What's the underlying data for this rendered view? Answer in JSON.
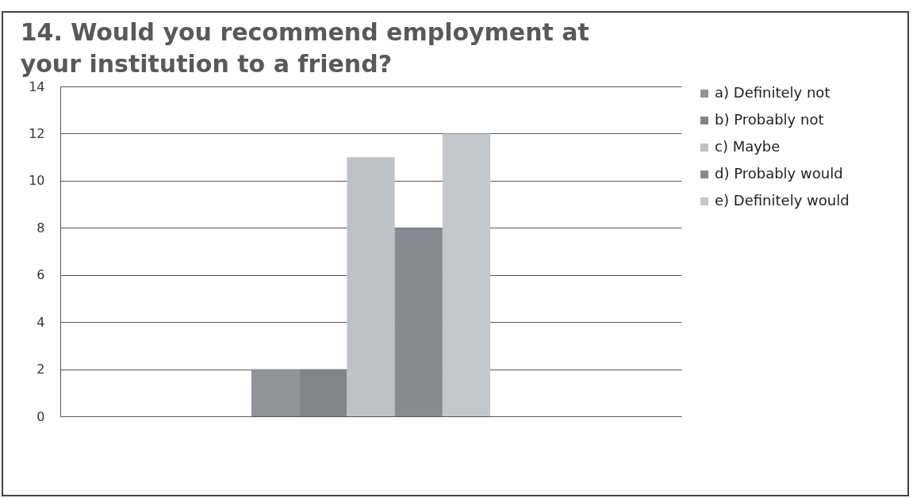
{
  "chart_data": {
    "type": "bar",
    "title": "14. Would you recommend employment at your institution to a friend?",
    "categories": [
      null
    ],
    "series": [
      {
        "name": "a) Definitely not",
        "color": "#8e949a",
        "values": [
          2
        ]
      },
      {
        "name": "b) Probably not",
        "color": "#7f858b",
        "values": [
          2
        ]
      },
      {
        "name": "c) Maybe",
        "color": "#bcc2c8",
        "values": [
          11
        ]
      },
      {
        "name": "d) Probably would",
        "color": "#868b91",
        "values": [
          8
        ]
      },
      {
        "name": "e) Definitely would",
        "color": "#c3c8cd",
        "values": [
          12
        ]
      }
    ],
    "ylim": [
      0,
      14
    ],
    "yticks": [
      0,
      2,
      4,
      6,
      8,
      10,
      12,
      14
    ],
    "grid": "y",
    "legend": "right"
  }
}
